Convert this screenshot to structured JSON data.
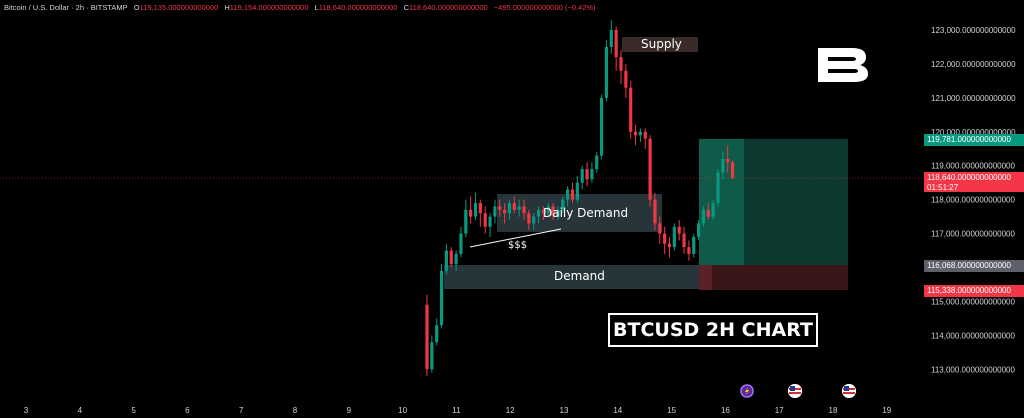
{
  "legend": {
    "symbol": "Bitcoin / U.S. Dollar · 2h · BITSTAMP",
    "open_key": "O",
    "open": "119,135.000000000000",
    "high_key": "H",
    "high": "119,154.000000000000",
    "low_key": "L",
    "low": "118,640.000000000000",
    "close_key": "C",
    "close": "118,640.000000000000",
    "change": "−495.000000000000 (−0.42%)"
  },
  "price_axis": {
    "ticks": [
      "123,000.000000000000",
      "122,000.000000000000",
      "121,000.000000000000",
      "120,000.000000000000",
      "119,000.000000000000",
      "118,000.000000000000",
      "117,000.000000000000",
      "116,000.000000000000",
      "115,000.000000000000",
      "114,000.000000000000",
      "113,000.000000000000"
    ],
    "tick_values": [
      123000,
      122000,
      121000,
      120000,
      119000,
      118000,
      117000,
      116000,
      115000,
      114000,
      113000
    ]
  },
  "time_axis": {
    "labels": [
      "3",
      "4",
      "5",
      "6",
      "7",
      "8",
      "9",
      "10",
      "11",
      "12",
      "13",
      "14",
      "15",
      "16",
      "17",
      "18",
      "19"
    ]
  },
  "price_tags": {
    "target": "119,781.000000000000",
    "current": "118,640.000000000000",
    "countdown": "01:51:27",
    "entry": "116,068.000000000000",
    "stop": "115,338.000000000000"
  },
  "zones": {
    "supply": "Supply",
    "daily_demand": "Daily Demand",
    "demand": "Demand",
    "liquidity": "$$$"
  },
  "chart_title": "BTCUSD 2H CHART",
  "colors": {
    "up": "#089981",
    "down": "#f23645",
    "background": "#000000"
  },
  "icons": [
    "logo-b-icon",
    "event-icon",
    "us-flag-icon",
    "us-flag-icon"
  ]
}
